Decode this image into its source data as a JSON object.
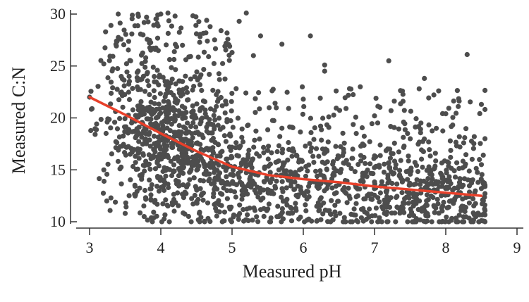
{
  "chart_data": {
    "type": "scatter",
    "title": "",
    "xlabel": "Measured pH",
    "ylabel": "Measured C:N",
    "xlim": [
      3,
      9
    ],
    "ylim": [
      10,
      30
    ],
    "xticks": [
      "3",
      "4",
      "5",
      "6",
      "7",
      "8",
      "9"
    ],
    "yticks": [
      "10",
      "15",
      "20",
      "25",
      "30"
    ],
    "grid": false,
    "legend": "none",
    "point_color": "#4d4d4d",
    "trend_color": "#e8402a",
    "trend_line": {
      "x": [
        3.0,
        3.5,
        4.0,
        4.5,
        5.0,
        5.5,
        6.0,
        6.5,
        7.0,
        7.5,
        8.0,
        8.5
      ],
      "y": [
        22.0,
        20.3,
        18.5,
        16.8,
        15.3,
        14.5,
        14.1,
        13.8,
        13.4,
        13.1,
        12.8,
        12.5
      ]
    },
    "density_profile": {
      "x": [
        3.1,
        3.3,
        3.5,
        3.7,
        3.9,
        4.1,
        4.3,
        4.5,
        4.7,
        4.9,
        5.1,
        5.3,
        5.5,
        5.7,
        5.9,
        6.1,
        6.3,
        6.5,
        6.7,
        6.9,
        7.1,
        7.3,
        7.5,
        7.7,
        7.9,
        8.1,
        8.3,
        8.5
      ],
      "relative_count": [
        0.15,
        0.3,
        0.5,
        0.8,
        1.0,
        1.0,
        0.95,
        0.85,
        0.75,
        0.65,
        0.55,
        0.5,
        0.45,
        0.45,
        0.4,
        0.4,
        0.4,
        0.4,
        0.4,
        0.45,
        0.45,
        0.5,
        0.5,
        0.5,
        0.5,
        0.45,
        0.4,
        0.3
      ]
    },
    "sample_points": [
      {
        "x": 3.0,
        "y": 22.0
      },
      {
        "x": 3.2,
        "y": 25.2
      },
      {
        "x": 3.3,
        "y": 28.9
      },
      {
        "x": 3.2,
        "y": 15.0
      },
      {
        "x": 3.3,
        "y": 12.3
      },
      {
        "x": 3.5,
        "y": 10.8
      },
      {
        "x": 3.6,
        "y": 29.9
      },
      {
        "x": 3.8,
        "y": 29.7
      },
      {
        "x": 4.0,
        "y": 30.0
      },
      {
        "x": 4.1,
        "y": 30.1
      },
      {
        "x": 4.2,
        "y": 29.8
      },
      {
        "x": 4.5,
        "y": 28.1
      },
      {
        "x": 4.9,
        "y": 26.9
      },
      {
        "x": 5.0,
        "y": 26.3
      },
      {
        "x": 5.1,
        "y": 29.3
      },
      {
        "x": 5.2,
        "y": 30.1
      },
      {
        "x": 5.3,
        "y": 26.0
      },
      {
        "x": 5.4,
        "y": 27.9
      },
      {
        "x": 5.7,
        "y": 27.1
      },
      {
        "x": 6.1,
        "y": 27.9
      },
      {
        "x": 6.3,
        "y": 25.1
      },
      {
        "x": 6.3,
        "y": 24.5
      },
      {
        "x": 6.8,
        "y": 23.0
      },
      {
        "x": 7.2,
        "y": 25.5
      },
      {
        "x": 7.4,
        "y": 21.6
      },
      {
        "x": 7.7,
        "y": 23.8
      },
      {
        "x": 7.9,
        "y": 22.6
      },
      {
        "x": 8.3,
        "y": 26.1
      },
      {
        "x": 8.4,
        "y": 18.2
      },
      {
        "x": 8.5,
        "y": 21.3
      },
      {
        "x": 8.5,
        "y": 13.2
      },
      {
        "x": 8.5,
        "y": 10.1
      },
      {
        "x": 6.0,
        "y": 21.8
      },
      {
        "x": 6.6,
        "y": 20.9
      },
      {
        "x": 7.0,
        "y": 20.2
      },
      {
        "x": 8.0,
        "y": 20.4
      }
    ],
    "n_points": 1800
  }
}
